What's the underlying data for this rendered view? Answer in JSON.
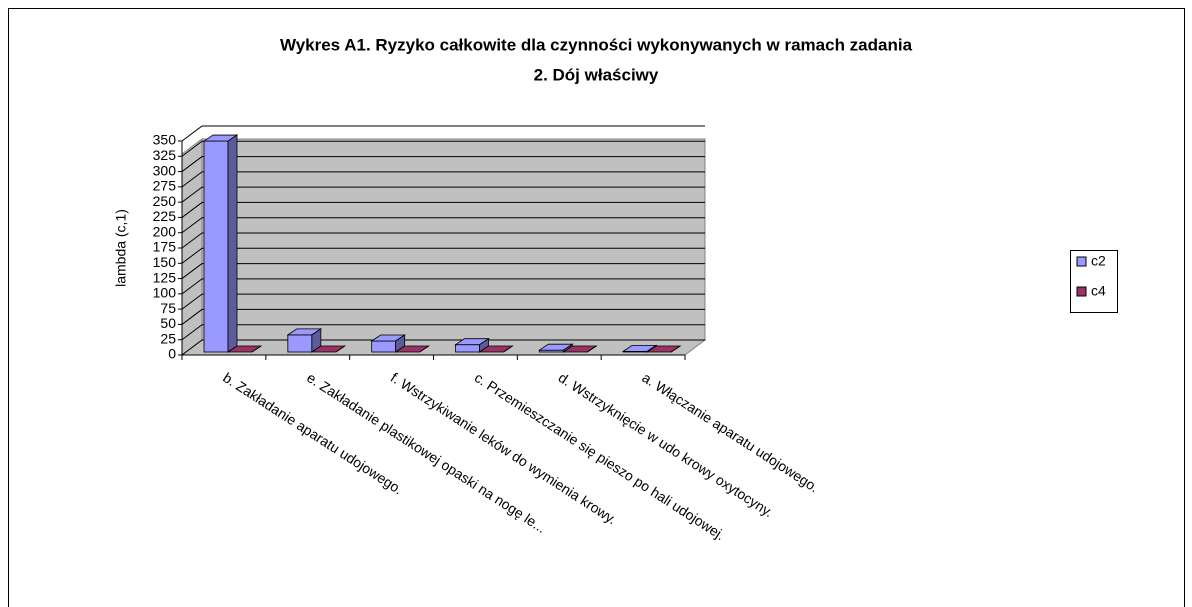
{
  "chart_data": {
    "type": "bar",
    "title": "Wykres A1. Ryzyko całkowite dla czynności wykonywanych w ramach zadania",
    "subtitle": "2. Dój właściwy",
    "y_label": "lambda (c,1)",
    "categories": [
      "b. Zakładanie aparatu udojowego.",
      "e. Zakładanie  plastikowej opaski na nogę le...",
      "f. Wstrzykiwanie leków do wymienia krowy.",
      "c. Przemieszczanie się pieszo po hali udojowej.",
      "d. Wstrzyknięcie w udo krowy oxytocyny.",
      "a. Włączanie aparatu udojowego."
    ],
    "series": [
      {
        "name": "c2",
        "color": "#9999ff",
        "values": [
          345,
          28,
          18,
          12,
          3,
          1
        ]
      },
      {
        "name": "c4",
        "color": "#993366",
        "values": [
          0,
          0,
          0,
          0,
          0,
          0
        ]
      }
    ],
    "ylim": [
      0,
      350
    ],
    "yticks": [
      0,
      25,
      50,
      75,
      100,
      125,
      150,
      175,
      200,
      225,
      250,
      275,
      300,
      325,
      350
    ],
    "grid": true,
    "legend": "right"
  }
}
